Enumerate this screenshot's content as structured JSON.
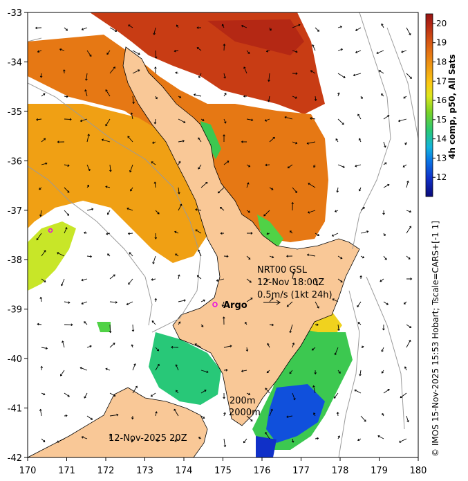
{
  "map": {
    "x_ticks": [
      "170",
      "171",
      "172",
      "173",
      "174",
      "175",
      "176",
      "177",
      "178",
      "179",
      "180"
    ],
    "y_ticks": [
      "-33",
      "-34",
      "-35",
      "-36",
      "-37",
      "-38",
      "-39",
      "-40",
      "-41",
      "-42"
    ],
    "lon_range": [
      170,
      180
    ],
    "lat_range": [
      -42,
      -33
    ],
    "land_color": "#f9c897",
    "water_color": "#ffffff"
  },
  "colorbar": {
    "label": "4h comp, p50, All Sats",
    "ticks": [
      "20",
      "19",
      "18",
      "17",
      "16",
      "15",
      "14",
      "13",
      "12"
    ],
    "range": [
      11,
      20.5
    ],
    "colors": [
      "#0a0a78",
      "#1030c8",
      "#0a78e6",
      "#14b4dc",
      "#28c878",
      "#78d228",
      "#dce61e",
      "#fac814",
      "#f0a014",
      "#e67814",
      "#d25014",
      "#b42814",
      "#961414"
    ]
  },
  "annotations": {
    "station": "NRT00 GSL",
    "time": "12-Nov 18:00Z",
    "scale": "0.5m/s (1kt 24h)",
    "argo": "Argo",
    "contour_200": "200m",
    "contour_2000": "2000m",
    "date_stamp": "12-Nov-2025 20Z"
  },
  "credit": "© IMOS 15-Nov-2025 15:53 Hobart; Tscale=CARS+[-1 1]"
}
